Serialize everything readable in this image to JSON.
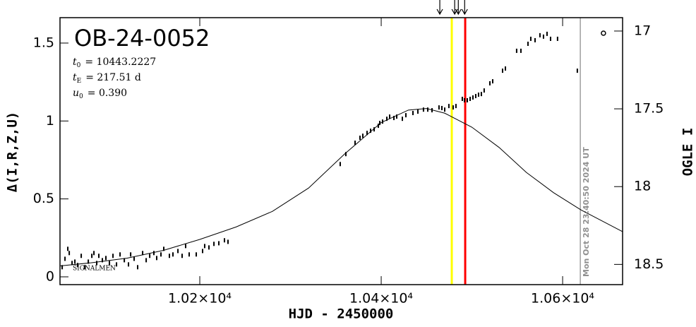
{
  "chart_data": {
    "type": "scatter",
    "title": "OB-24-0052",
    "params": [
      {
        "symbol": "t",
        "sub": "0",
        "text": "= 10443.2227"
      },
      {
        "symbol": "t",
        "sub": "E",
        "text": "= 217.51 d"
      },
      {
        "symbol": "u",
        "sub": "0",
        "text": "= 0.390"
      }
    ],
    "xlabel": "HJD - 2450000",
    "ylabel": "Δ(I,R,Z,U)",
    "y2label": "OGLE I",
    "note": "SIGNALMEN",
    "timestamp": "Mon Oct 28 23:40:50 2024 UT",
    "xlim": [
      10045.9,
      10666.1
    ],
    "xticks": [
      {
        "value": 10200,
        "label": "1.02×10⁴"
      },
      {
        "value": 10400,
        "label": "1.04×10⁴"
      },
      {
        "value": 10600,
        "label": "1.06×10⁴"
      }
    ],
    "ylim": [
      -0.05,
      1.663
    ],
    "yticks": [
      0,
      0.5,
      1,
      1.5
    ],
    "y2lim": [
      18.63,
      16.914
    ],
    "y2ticks": [
      17,
      17.5,
      18,
      18.5
    ],
    "model": {
      "color": "#000000",
      "x": [
        10046,
        10080,
        10120,
        10160,
        10200,
        10240,
        10280,
        10320,
        10360,
        10400,
        10430,
        10450,
        10470,
        10500,
        10530,
        10560,
        10590,
        10620,
        10666
      ],
      "values": [
        0.07,
        0.09,
        0.12,
        0.17,
        0.24,
        0.32,
        0.42,
        0.57,
        0.79,
        0.99,
        1.07,
        1.08,
        1.05,
        0.96,
        0.83,
        0.67,
        0.54,
        0.43,
        0.29
      ]
    },
    "series": [
      {
        "axis": "y2",
        "color": "#000000",
        "marker": "bar",
        "x": [
          10048.3,
          10051.4,
          10054.5,
          10056.1,
          10059.2,
          10062.3,
          10065.4,
          10069.3,
          10073.2,
          10077.1,
          10081.0,
          10083.3,
          10086.4,
          10088.7,
          10092.6,
          10096.5,
          10100.4,
          10104.3,
          10108.2,
          10112.1,
          10116.8,
          10121.4,
          10123.8,
          10127.6,
          10131.5,
          10137.0,
          10140.9,
          10144.8,
          10149.4,
          10152.5,
          10157.2,
          10160.3,
          10166.5,
          10170.4,
          10175.9,
          10180.5,
          10184.4,
          10188.3,
          10196.1,
          10203.1,
          10205.4,
          10210.1,
          10215.6,
          10221.0,
          10227.2,
          10231.1,
          10354.8,
          10361.0,
          10371.2,
          10376.6,
          10379.7,
          10384.4,
          10388.3,
          10392.2,
          10396.8,
          10398.4,
          10401.5,
          10406.2,
          10409.3,
          10414.0,
          10417.1,
          10423.3,
          10427.2,
          10435.0,
          10440.4,
          10446.6,
          10451.3,
          10456.0,
          10463.7,
          10466.9,
          10470.0,
          10474.6,
          10479.3,
          10482.4,
          10489.4,
          10491.8,
          10494.9,
          10498.0,
          10501.1,
          10504.2,
          10507.3,
          10510.4,
          10513.5,
          10519.8,
          10522.9,
          10533.8,
          10536.9,
          10549.3,
          10554.0,
          10561.8,
          10564.9,
          10569.6,
          10575.0,
          10578.9,
          10582.8,
          10586.7,
          10594.4,
          10616.2
        ],
        "values": [
          18.518,
          18.464,
          18.4,
          18.427,
          18.491,
          18.482,
          18.504,
          18.445,
          18.518,
          18.482,
          18.445,
          18.427,
          18.491,
          18.445,
          18.473,
          18.459,
          18.491,
          18.445,
          18.5,
          18.436,
          18.473,
          18.5,
          18.436,
          18.464,
          18.518,
          18.427,
          18.473,
          18.445,
          18.427,
          18.459,
          18.436,
          18.4,
          18.445,
          18.436,
          18.414,
          18.445,
          18.382,
          18.436,
          18.436,
          18.414,
          18.382,
          18.391,
          18.368,
          18.364,
          18.345,
          18.355,
          17.855,
          17.791,
          17.718,
          17.686,
          17.673,
          17.655,
          17.641,
          17.632,
          17.609,
          17.591,
          17.582,
          17.564,
          17.55,
          17.559,
          17.55,
          17.564,
          17.541,
          17.527,
          17.518,
          17.505,
          17.505,
          17.509,
          17.491,
          17.495,
          17.505,
          17.482,
          17.491,
          17.482,
          17.436,
          17.445,
          17.445,
          17.436,
          17.427,
          17.418,
          17.409,
          17.405,
          17.382,
          17.336,
          17.323,
          17.255,
          17.241,
          17.127,
          17.127,
          17.082,
          17.05,
          17.059,
          17.027,
          17.036,
          17.018,
          17.05,
          17.05,
          17.255
        ]
      },
      {
        "axis": "y2",
        "color": "#000000",
        "marker": "open-circle",
        "x": [
          10645.0
        ],
        "values": [
          17.014
        ]
      }
    ],
    "vlines": [
      {
        "x": 10477.8,
        "color": "#ffff00"
      },
      {
        "x": 10492.6,
        "color": "#ff0000"
      },
      {
        "x": 10619.5,
        "color": "#a0a0a0"
      }
    ],
    "arrows": [
      10464.6,
      10481.0,
      10485.0,
      10492.0
    ]
  }
}
